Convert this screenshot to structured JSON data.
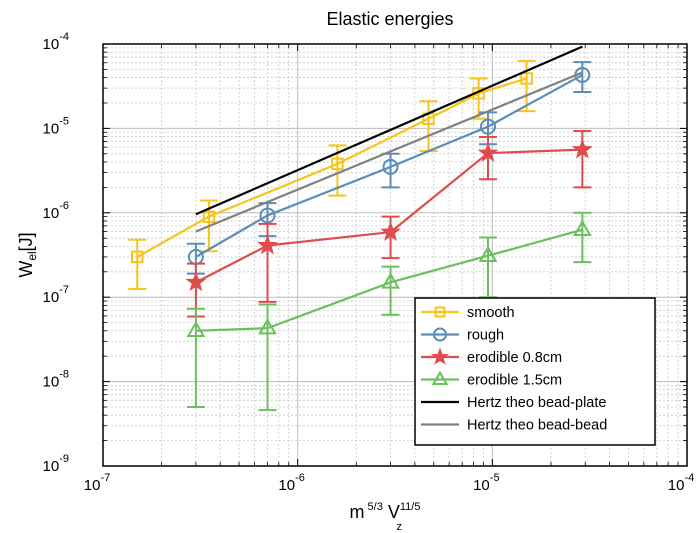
{
  "chart_data": {
    "type": "line",
    "title": "Elastic energies",
    "xlabel": {
      "base": "m",
      "exp1": "5/3",
      "mid": " V",
      "sub": "z",
      "exp2": "11/5"
    },
    "ylabel": {
      "base": "W",
      "sub": "el",
      "unit": "[J]"
    },
    "x_scale": "log",
    "y_scale": "log",
    "xlim": [
      1e-07,
      0.0001
    ],
    "ylim": [
      1e-09,
      0.0001
    ],
    "x_ticks": [
      {
        "value": 1e-07,
        "base": "10",
        "exp": "-7"
      },
      {
        "value": 1e-06,
        "base": "10",
        "exp": "-6"
      },
      {
        "value": 1e-05,
        "base": "10",
        "exp": "-5"
      },
      {
        "value": 0.0001,
        "base": "10",
        "exp": "-4"
      }
    ],
    "y_ticks": [
      {
        "value": 1e-09,
        "base": "10",
        "exp": "-9"
      },
      {
        "value": 1e-08,
        "base": "10",
        "exp": "-8"
      },
      {
        "value": 1e-07,
        "base": "10",
        "exp": "-7"
      },
      {
        "value": 1e-06,
        "base": "10",
        "exp": "-6"
      },
      {
        "value": 1e-05,
        "base": "10",
        "exp": "-5"
      },
      {
        "value": 0.0001,
        "base": "10",
        "exp": "-4"
      }
    ],
    "grid": true,
    "minor_grid": true,
    "legend_position": "bottom-right",
    "series": [
      {
        "name": "smooth",
        "color": "#f5c518",
        "marker": "square",
        "points": [
          {
            "x": 1.5e-07,
            "y": 3e-07,
            "lo": 1.25e-07,
            "hi": 4.8e-07
          },
          {
            "x": 3.5e-07,
            "y": 9e-07,
            "lo": 3.5e-07,
            "hi": 1.4e-06
          },
          {
            "x": 1.6e-06,
            "y": 3.8e-06,
            "lo": 1.6e-06,
            "hi": 6.3e-06
          },
          {
            "x": 4.7e-06,
            "y": 1.3e-05,
            "lo": 5.4e-06,
            "hi": 2.1e-05
          },
          {
            "x": 8.5e-06,
            "y": 2.6e-05,
            "lo": 1.3e-05,
            "hi": 3.9e-05
          },
          {
            "x": 1.5e-05,
            "y": 3.9e-05,
            "lo": 1.6e-05,
            "hi": 6.3e-05
          }
        ]
      },
      {
        "name": "rough",
        "color": "#5b8db8",
        "marker": "circle",
        "points": [
          {
            "x": 3e-07,
            "y": 3e-07,
            "lo": 1.9e-07,
            "hi": 4.3e-07
          },
          {
            "x": 7e-07,
            "y": 9.3e-07,
            "lo": 5.3e-07,
            "hi": 1.3e-06
          },
          {
            "x": 3e-06,
            "y": 3.5e-06,
            "lo": 2e-06,
            "hi": 5e-06
          },
          {
            "x": 9.5e-06,
            "y": 1.05e-05,
            "lo": 6.5e-06,
            "hi": 1.55e-05
          },
          {
            "x": 2.9e-05,
            "y": 4.3e-05,
            "lo": 2.7e-05,
            "hi": 6.1e-05
          }
        ]
      },
      {
        "name": "erodible 0.8cm",
        "color": "#e04b4b",
        "marker": "star",
        "points": [
          {
            "x": 3e-07,
            "y": 1.5e-07,
            "lo": 5.9e-08,
            "hi": 2.5e-07
          },
          {
            "x": 7e-07,
            "y": 4.1e-07,
            "lo": 8.8e-08,
            "hi": 7.4e-07
          },
          {
            "x": 3e-06,
            "y": 5.9e-07,
            "lo": 2.9e-07,
            "hi": 9e-07
          },
          {
            "x": 9.5e-06,
            "y": 5.1e-06,
            "lo": 2.5e-06,
            "hi": 7.9e-06
          },
          {
            "x": 2.9e-05,
            "y": 5.6e-06,
            "lo": 2e-06,
            "hi": 9.3e-06
          }
        ]
      },
      {
        "name": "erodible 1.5cm",
        "color": "#6cbf5e",
        "marker": "triangle",
        "points": [
          {
            "x": 3e-07,
            "y": 4e-08,
            "lo": 5e-09,
            "hi": 7.3e-08
          },
          {
            "x": 7e-07,
            "y": 4.3e-08,
            "lo": 4.6e-09,
            "hi": 8.2e-08
          },
          {
            "x": 3e-06,
            "y": 1.5e-07,
            "lo": 6.2e-08,
            "hi": 2.3e-07
          },
          {
            "x": 9.5e-06,
            "y": 3.1e-07,
            "lo": 1e-07,
            "hi": 5.1e-07
          },
          {
            "x": 2.9e-05,
            "y": 6.3e-07,
            "lo": 2.6e-07,
            "hi": 1e-06
          }
        ]
      },
      {
        "name": "Hertz theo bead-plate",
        "color": "#000000",
        "marker": "none",
        "points": [
          {
            "x": 3e-07,
            "y": 9.6e-07
          },
          {
            "x": 2.9e-05,
            "y": 9.3e-05
          }
        ]
      },
      {
        "name": "Hertz theo bead-bead",
        "color": "#808080",
        "marker": "none",
        "points": [
          {
            "x": 3e-07,
            "y": 6e-07
          },
          {
            "x": 2.9e-05,
            "y": 4.6e-05
          }
        ]
      }
    ]
  }
}
